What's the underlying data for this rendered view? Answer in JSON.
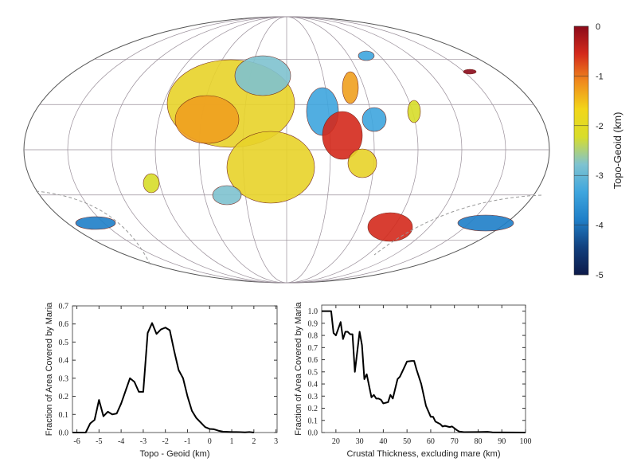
{
  "colorbar": {
    "label": "Topo-Geoid (km)",
    "ticks": [
      "0",
      "-1",
      "-2",
      "-3",
      "-4",
      "-5"
    ],
    "colors": [
      "#8b0a1a",
      "#d42a1c",
      "#f08a1c",
      "#f2d61a",
      "#d8dd2a",
      "#7fc3d0",
      "#3fa6de",
      "#1f7fc8",
      "#12407e",
      "#0d1a4a"
    ]
  },
  "chart_data": [
    {
      "type": "line",
      "xlabel": "Topo - Geoid (km)",
      "ylabel": "Fraction of Area Covered by Maria",
      "xlim": [
        -6.2,
        3.05
      ],
      "ylim": [
        0,
        0.7
      ],
      "xticks": [
        "-6",
        "-5",
        "-4",
        "-3",
        "-2",
        "-1",
        "0",
        "1",
        "2",
        "3"
      ],
      "yticks": [
        "0.0",
        "0.1",
        "0.2",
        "0.3",
        "0.4",
        "0.5",
        "0.6",
        "0.7"
      ],
      "x": [
        -6.2,
        -5.6,
        -5.4,
        -5.2,
        -5.0,
        -4.8,
        -4.6,
        -4.4,
        -4.2,
        -4.0,
        -3.8,
        -3.6,
        -3.4,
        -3.2,
        -3.0,
        -2.8,
        -2.6,
        -2.4,
        -2.2,
        -2.0,
        -1.8,
        -1.6,
        -1.4,
        -1.2,
        -1.0,
        -0.8,
        -0.6,
        -0.4,
        -0.2,
        0,
        0.2,
        0.4,
        0.6,
        0.8,
        1.0,
        1.2,
        1.4,
        1.6,
        1.8,
        2.0
      ],
      "y": [
        0,
        0,
        0.05,
        0.07,
        0.18,
        0.09,
        0.115,
        0.1,
        0.105,
        0.16,
        0.23,
        0.3,
        0.28,
        0.225,
        0.225,
        0.55,
        0.605,
        0.545,
        0.57,
        0.58,
        0.565,
        0.45,
        0.345,
        0.3,
        0.2,
        0.12,
        0.08,
        0.055,
        0.03,
        0.02,
        0.018,
        0.01,
        0.005,
        0.004,
        0.003,
        0.003,
        0.002,
        0.001,
        0.003,
        0
      ]
    },
    {
      "type": "line",
      "xlabel": "Crustal Thickness, excluding mare (km)",
      "ylabel": "Fraction of Area Covered by Maria",
      "xlim": [
        14,
        100
      ],
      "ylim": [
        0,
        1.05
      ],
      "xticks": [
        "20",
        "30",
        "40",
        "50",
        "60",
        "70",
        "80",
        "90",
        "100"
      ],
      "yticks": [
        "0.0",
        "0.1",
        "0.2",
        "0.3",
        "0.4",
        "0.5",
        "0.6",
        "0.7",
        "0.8",
        "0.9",
        "1.0"
      ],
      "x": [
        14,
        18,
        19,
        20,
        22,
        23,
        24,
        25,
        26,
        27,
        28,
        30,
        31,
        32,
        33,
        35,
        36,
        37,
        38,
        39,
        40,
        42,
        43,
        44,
        46,
        47,
        50,
        52,
        53,
        54,
        56,
        58,
        60,
        61,
        62,
        64,
        65,
        66,
        68,
        69,
        71,
        72,
        74,
        80,
        84,
        86,
        100
      ],
      "y": [
        1,
        1,
        0.82,
        0.8,
        0.91,
        0.77,
        0.83,
        0.83,
        0.81,
        0.81,
        0.5,
        0.83,
        0.72,
        0.44,
        0.48,
        0.29,
        0.31,
        0.28,
        0.28,
        0.27,
        0.24,
        0.25,
        0.31,
        0.28,
        0.44,
        0.46,
        0.585,
        0.59,
        0.59,
        0.52,
        0.4,
        0.22,
        0.13,
        0.13,
        0.09,
        0.07,
        0.05,
        0.055,
        0.045,
        0.05,
        0.02,
        0.008,
        0.003,
        0.004,
        0.006,
        0.002,
        0
      ]
    }
  ]
}
